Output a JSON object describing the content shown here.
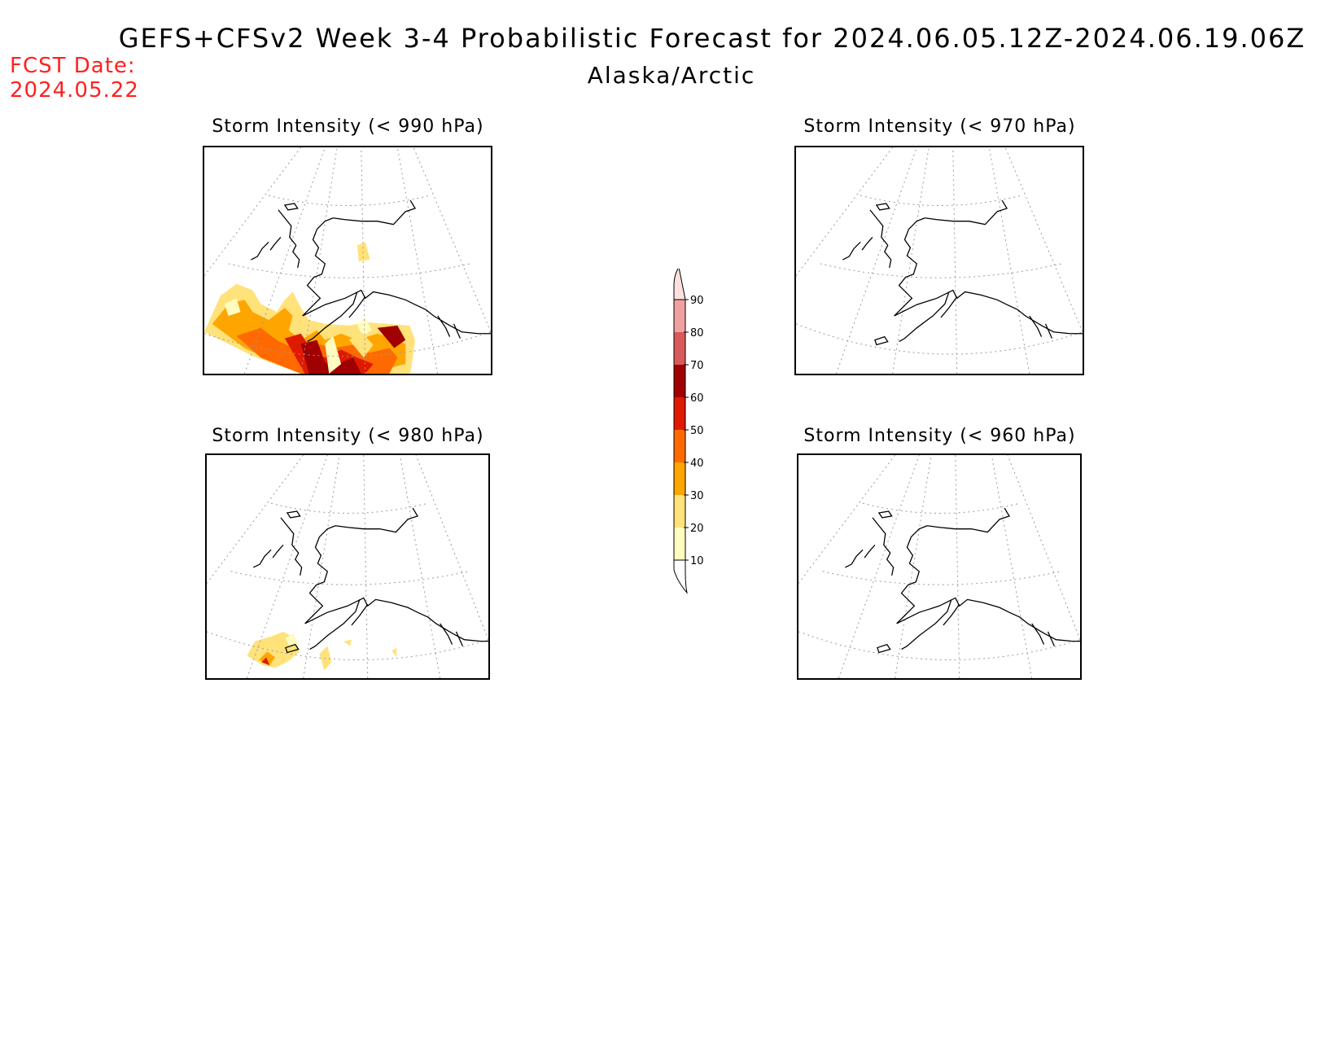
{
  "header": {
    "title": "GEFS+CFSv2 Week 3-4 Probabilistic Forecast for 2024.06.05.12Z-2024.06.19.06Z",
    "subtitle": "Alaska/Arctic",
    "fcst_label": "FCST Date:",
    "fcst_date": "2024.05.22"
  },
  "panels": [
    {
      "id": "p990",
      "title": "Storm Intensity (< 990 hPa)",
      "threshold_hPa": 990,
      "coverage": "extensive high probabilities across Bering Sea, Aleutians and Gulf of Alaska"
    },
    {
      "id": "p970",
      "title": "Storm Intensity (< 970 hPa)",
      "threshold_hPa": 970,
      "coverage": "none"
    },
    {
      "id": "p980",
      "title": "Storm Intensity (< 980 hPa)",
      "threshold_hPa": 980,
      "coverage": "low probabilities near western Aleutians"
    },
    {
      "id": "p960",
      "title": "Storm Intensity (< 960 hPa)",
      "threshold_hPa": 960,
      "coverage": "none"
    }
  ],
  "colorbar": {
    "levels": [
      "10",
      "20",
      "30",
      "40",
      "50",
      "60",
      "70",
      "80",
      "90"
    ],
    "colors": [
      "#fffcc0",
      "#ffe27a",
      "#ffa500",
      "#ff6a00",
      "#e01a00",
      "#a00000",
      "#d85a5a",
      "#f0a0a0",
      "#ffe0e0"
    ],
    "units": "percent"
  },
  "colors": {
    "fcst_text": "#ff2020",
    "coast": "#000000",
    "grid": "#999999"
  }
}
